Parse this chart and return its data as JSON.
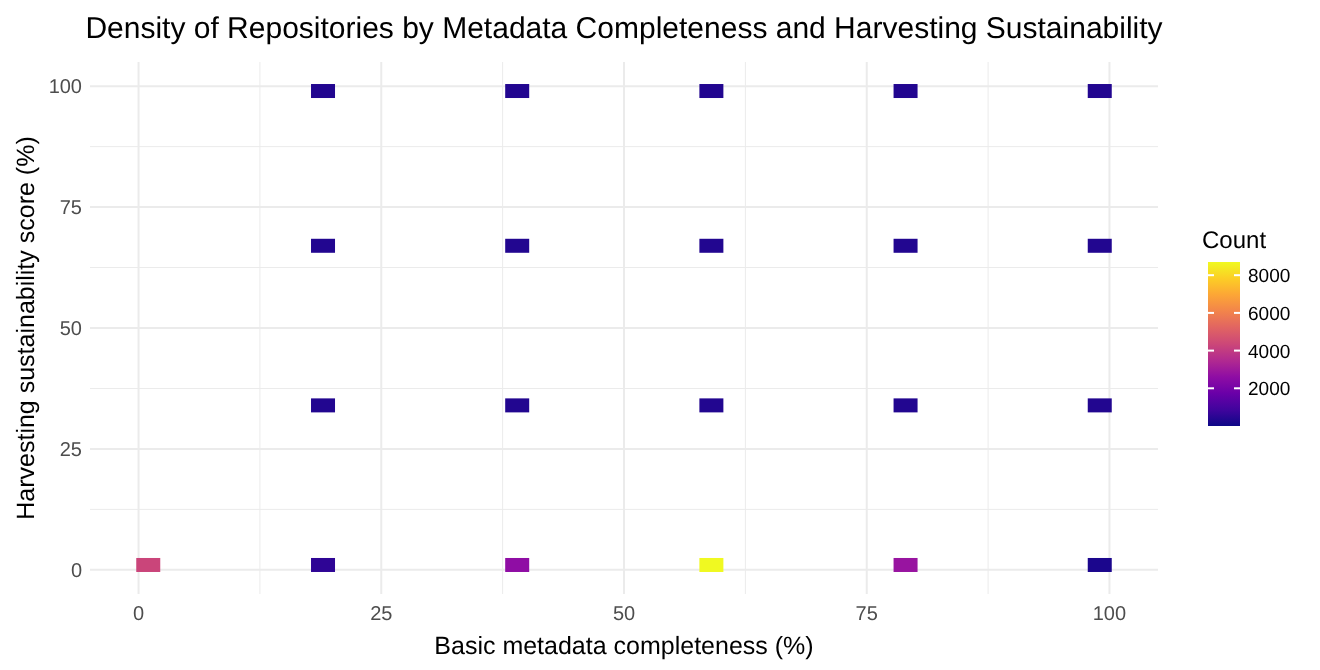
{
  "chart_data": {
    "type": "scatter",
    "title": "Density of Repositories by Metadata Completeness and Harvesting Sustainability",
    "xlabel": "Basic metadata completeness (%)",
    "ylabel": "Harvesting sustainability score (%)",
    "clabel": "Count",
    "x": [
      1,
      19,
      39,
      59,
      79,
      99,
      19,
      39,
      59,
      79,
      99,
      19,
      39,
      59,
      79,
      99,
      19,
      39,
      59,
      79,
      99
    ],
    "values": [
      1,
      1,
      1,
      1,
      1,
      1,
      34,
      34,
      34,
      34,
      34,
      67,
      67,
      67,
      67,
      67,
      99,
      99,
      99,
      99,
      99
    ],
    "cvalues": [
      4300,
      500,
      2600,
      8700,
      2800,
      200,
      300,
      300,
      300,
      300,
      300,
      300,
      300,
      300,
      300,
      300,
      300,
      300,
      300,
      300,
      300
    ],
    "clim": [
      0,
      8700
    ],
    "cticks": [
      2000,
      4000,
      6000,
      8000
    ],
    "xlim": [
      -5,
      105
    ],
    "ylim": [
      -5,
      105
    ],
    "xticks": [
      0,
      {
        "value": 12.5,
        "label": null
      },
      25,
      {
        "value": 37.5,
        "label": null
      },
      50,
      {
        "value": 62.5,
        "label": null
      },
      75,
      {
        "value": 87.5,
        "label": null
      },
      100
    ],
    "yticks": [
      0,
      {
        "value": 12.5,
        "label": null
      },
      25,
      {
        "value": 37.5,
        "label": null
      },
      50,
      {
        "value": 62.5,
        "label": null
      },
      75,
      {
        "value": 87.5,
        "label": null
      },
      100
    ],
    "grid": true,
    "marker": "square"
  }
}
